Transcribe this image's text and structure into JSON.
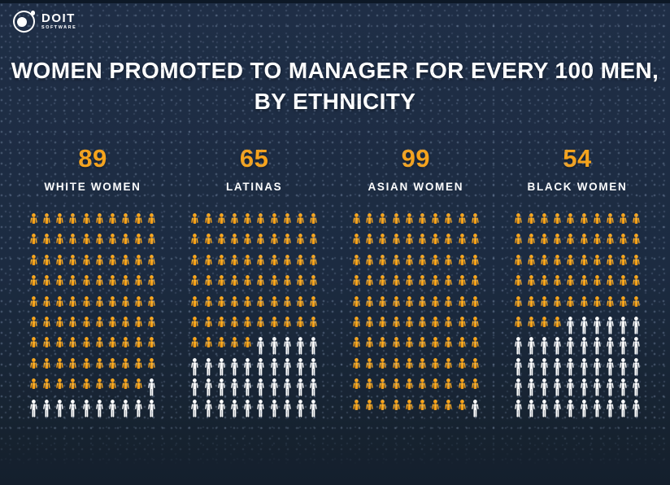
{
  "logo": {
    "brand": "DOIT",
    "sub": "SOFTWARE"
  },
  "title": {
    "line1": "WOMEN PROMOTED TO MANAGER FOR EVERY 100 MEN,",
    "line2": "BY ETHNICITY"
  },
  "colors": {
    "background": "#1c2b41",
    "accent_orange": "#f5a31c",
    "unfilled_white": "#ffffff",
    "text": "#ffffff"
  },
  "chart_data": {
    "type": "pictograph",
    "title": "Women promoted to manager for every 100 men, by ethnicity",
    "unit_total_per_group": 100,
    "grid": {
      "columns": 10,
      "rows": 10
    },
    "icon": "person-icon",
    "categories": [
      "WHITE WOMEN",
      "LATINAS",
      "ASIAN WOMEN",
      "BLACK WOMEN"
    ],
    "values": [
      89,
      65,
      99,
      54
    ],
    "filled_color": "#f5a31c",
    "empty_color": "#ffffff",
    "legend": "none"
  }
}
